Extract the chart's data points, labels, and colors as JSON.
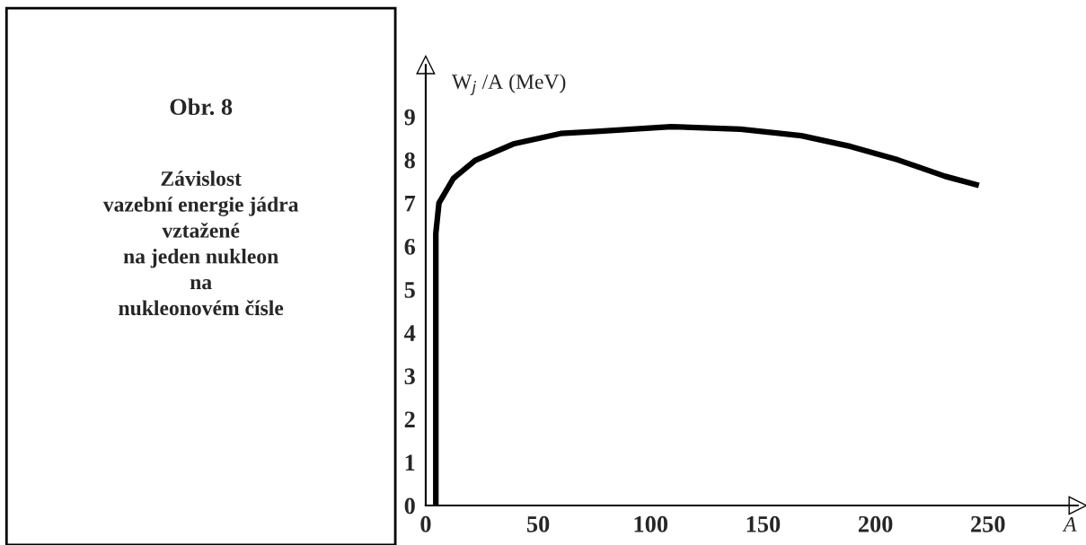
{
  "chart_data": {
    "type": "line",
    "title": "Obr. 8",
    "subtitle": "Závislost\nvazební energie jádra\nvztažené\nna jeden nukleon\nna\nnukleonovém čísle",
    "xlabel": "A",
    "ylabel": "W$_{j}$ /A (MeV)",
    "x": [
      4.5,
      4.5,
      4.5,
      5.9,
      12.3,
      22,
      39,
      60,
      76,
      109,
      140,
      167,
      189,
      210,
      231,
      246
    ],
    "series": [
      {
        "color": "#000000",
        "values": [
          0,
          3,
          6.3,
          7.0,
          7.57,
          7.99,
          8.37,
          8.61,
          8.66,
          8.77,
          8.71,
          8.56,
          8.31,
          8.0,
          7.62,
          7.41
        ]
      }
    ],
    "xlim": [
      0,
      290
    ],
    "ylim": [
      0,
      10.2
    ],
    "xticks": [
      0,
      50,
      100,
      150,
      200,
      250
    ],
    "yticks": [
      0,
      1,
      2,
      3,
      4,
      5,
      6,
      7,
      8,
      9
    ],
    "grid": false,
    "marker": "none",
    "line_style": "solid"
  }
}
